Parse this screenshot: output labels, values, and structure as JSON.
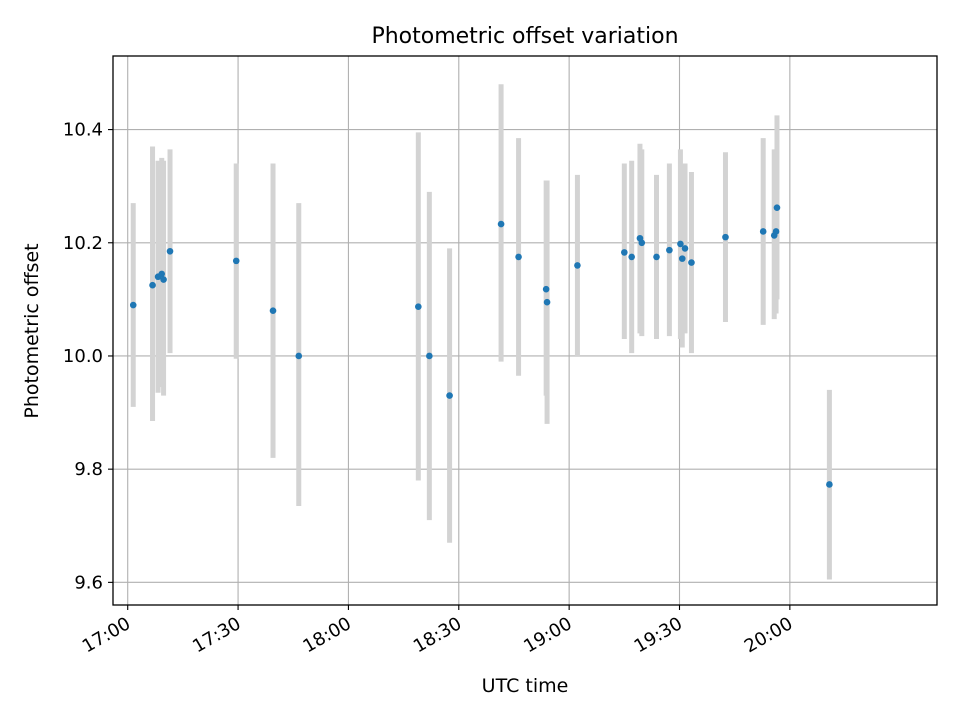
{
  "chart_data": {
    "type": "scatter",
    "title": "Photometric offset variation",
    "xlabel": "UTC time",
    "ylabel": "Photometric offset",
    "x_unit": "UTC time (HH:MM)",
    "xlim": [
      "16:56",
      "20:40"
    ],
    "ylim": [
      9.56,
      10.53
    ],
    "x_ticks": [
      "17:00",
      "17:30",
      "18:00",
      "18:30",
      "19:00",
      "19:30",
      "20:00"
    ],
    "y_ticks": [
      "9.6",
      "9.8",
      "10.0",
      "10.2",
      "10.4"
    ],
    "grid": true,
    "colors": {
      "point": "#1f77b4",
      "errorbar": "#d3d3d3",
      "grid": "#b0b0b0"
    },
    "series": [
      {
        "points": [
          {
            "x": "17:01:30",
            "y": 10.09,
            "err_low": 9.91,
            "err_high": 10.27
          },
          {
            "x": "17:06:45",
            "y": 10.125,
            "err_low": 9.885,
            "err_high": 10.37
          },
          {
            "x": "17:08:15",
            "y": 10.14,
            "err_low": 9.935,
            "err_high": 10.345
          },
          {
            "x": "17:09:15",
            "y": 10.145,
            "err_low": 9.945,
            "err_high": 10.35
          },
          {
            "x": "17:09:45",
            "y": 10.135,
            "err_low": 9.93,
            "err_high": 10.345
          },
          {
            "x": "17:11:30",
            "y": 10.185,
            "err_low": 10.005,
            "err_high": 10.365
          },
          {
            "x": "17:29:30",
            "y": 10.168,
            "err_low": 9.995,
            "err_high": 10.34
          },
          {
            "x": "17:39:30",
            "y": 10.08,
            "err_low": 9.82,
            "err_high": 10.34
          },
          {
            "x": "17:46:30",
            "y": 10.0,
            "err_low": 9.735,
            "err_high": 10.27
          },
          {
            "x": "18:19:00",
            "y": 10.087,
            "err_low": 9.78,
            "err_high": 10.395
          },
          {
            "x": "18:22:00",
            "y": 10.0,
            "err_low": 9.71,
            "err_high": 10.29
          },
          {
            "x": "18:27:30",
            "y": 9.93,
            "err_low": 9.67,
            "err_high": 10.19
          },
          {
            "x": "18:41:30",
            "y": 10.233,
            "err_low": 9.99,
            "err_high": 10.48
          },
          {
            "x": "18:46:15",
            "y": 10.175,
            "err_low": 9.965,
            "err_high": 10.385
          },
          {
            "x": "18:53:45",
            "y": 10.118,
            "err_low": 9.93,
            "err_high": 10.31
          },
          {
            "x": "18:54:00",
            "y": 10.095,
            "err_low": 9.88,
            "err_high": 10.31
          },
          {
            "x": "19:02:15",
            "y": 10.16,
            "err_low": 10.0,
            "err_high": 10.32
          },
          {
            "x": "19:15:00",
            "y": 10.183,
            "err_low": 10.03,
            "err_high": 10.34
          },
          {
            "x": "19:17:00",
            "y": 10.175,
            "err_low": 10.005,
            "err_high": 10.345
          },
          {
            "x": "19:19:15",
            "y": 10.208,
            "err_low": 10.04,
            "err_high": 10.375
          },
          {
            "x": "19:19:45",
            "y": 10.2,
            "err_low": 10.035,
            "err_high": 10.365
          },
          {
            "x": "19:23:45",
            "y": 10.175,
            "err_low": 10.03,
            "err_high": 10.32
          },
          {
            "x": "19:27:15",
            "y": 10.187,
            "err_low": 10.035,
            "err_high": 10.34
          },
          {
            "x": "19:30:15",
            "y": 10.198,
            "err_low": 10.03,
            "err_high": 10.365
          },
          {
            "x": "19:30:45",
            "y": 10.172,
            "err_low": 10.015,
            "err_high": 10.33
          },
          {
            "x": "19:31:30",
            "y": 10.19,
            "err_low": 10.04,
            "err_high": 10.34
          },
          {
            "x": "19:33:15",
            "y": 10.165,
            "err_low": 10.005,
            "err_high": 10.325
          },
          {
            "x": "19:42:30",
            "y": 10.21,
            "err_low": 10.06,
            "err_high": 10.36
          },
          {
            "x": "19:52:45",
            "y": 10.22,
            "err_low": 10.055,
            "err_high": 10.385
          },
          {
            "x": "19:55:45",
            "y": 10.213,
            "err_low": 10.065,
            "err_high": 10.365
          },
          {
            "x": "19:56:15",
            "y": 10.22,
            "err_low": 10.075,
            "err_high": 10.365
          },
          {
            "x": "19:56:30",
            "y": 10.262,
            "err_low": 10.1,
            "err_high": 10.425
          },
          {
            "x": "20:10:45",
            "y": 9.773,
            "err_low": 9.605,
            "err_high": 9.94
          }
        ]
      }
    ]
  }
}
